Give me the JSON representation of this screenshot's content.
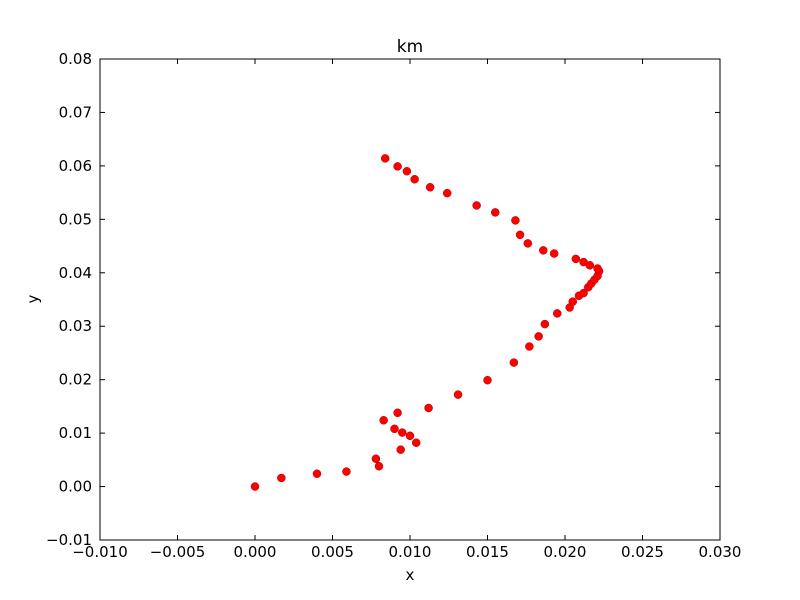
{
  "chart_data": {
    "type": "scatter",
    "title": "km",
    "xlabel": "x",
    "ylabel": "y",
    "xlim": [
      -0.01,
      0.03
    ],
    "ylim": [
      -0.01,
      0.08
    ],
    "xticks": [
      "−0.010",
      "−0.005",
      "0.000",
      "0.005",
      "0.010",
      "0.015",
      "0.020",
      "0.025",
      "0.030"
    ],
    "yticks": [
      "−0.01",
      "0.00",
      "0.01",
      "0.02",
      "0.03",
      "0.04",
      "0.05",
      "0.06",
      "0.07",
      "0.08"
    ],
    "grid": false,
    "marker_color": "#ff0000",
    "series": [
      {
        "x": [
          0.0,
          0.0017,
          0.004,
          0.0059,
          0.0078,
          0.008,
          0.0083,
          0.009,
          0.0092,
          0.0095,
          0.0094,
          0.01,
          0.0104,
          0.0112,
          0.0131,
          0.015,
          0.0167,
          0.0177,
          0.0183,
          0.0187,
          0.0195,
          0.0203,
          0.0205,
          0.0209,
          0.0212,
          0.0215,
          0.0217,
          0.0219,
          0.0221,
          0.0222,
          0.0221,
          0.0216,
          0.0212,
          0.0207,
          0.0193,
          0.0186,
          0.0176,
          0.0171,
          0.0168,
          0.0155,
          0.0143,
          0.0124,
          0.0113,
          0.0103,
          0.0098,
          0.0092,
          0.0084
        ],
        "y": [
          0.0,
          0.0016,
          0.0024,
          0.0028,
          0.0052,
          0.0038,
          0.0124,
          0.0108,
          0.0138,
          0.0101,
          0.0069,
          0.0095,
          0.0082,
          0.0147,
          0.0172,
          0.0199,
          0.0232,
          0.0262,
          0.0281,
          0.0304,
          0.0324,
          0.0335,
          0.0346,
          0.0357,
          0.0362,
          0.0373,
          0.038,
          0.0387,
          0.0394,
          0.0403,
          0.0408,
          0.0414,
          0.042,
          0.0426,
          0.0436,
          0.0442,
          0.0455,
          0.0471,
          0.0498,
          0.0513,
          0.0526,
          0.0549,
          0.056,
          0.0575,
          0.059,
          0.0599,
          0.0614
        ]
      }
    ]
  }
}
